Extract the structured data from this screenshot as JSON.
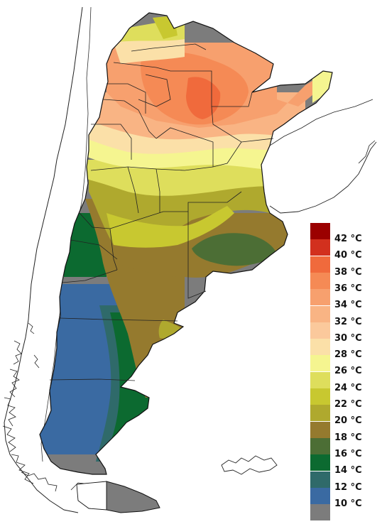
{
  "legend": {
    "items": [
      {
        "label": "42 °C",
        "color": "#9b0000"
      },
      {
        "label": "40 °C",
        "color": "#d2301e"
      },
      {
        "label": "38 °C",
        "color": "#f06a3c"
      },
      {
        "label": "36 °C",
        "color": "#f58a55"
      },
      {
        "label": "34 °C",
        "color": "#f7a06e"
      },
      {
        "label": "32 °C",
        "color": "#f9b484"
      },
      {
        "label": "30 °C",
        "color": "#fbc99c"
      },
      {
        "label": "28 °C",
        "color": "#fbe0a8"
      },
      {
        "label": "26 °C",
        "color": "#f5f590"
      },
      {
        "label": "24 °C",
        "color": "#dede5c"
      },
      {
        "label": "22 °C",
        "color": "#c8c830"
      },
      {
        "label": "20 °C",
        "color": "#afa92e"
      },
      {
        "label": "18 °C",
        "color": "#957a2e"
      },
      {
        "label": "16 °C",
        "color": "#4c6e35"
      },
      {
        "label": "14 °C",
        "color": "#0c6a30"
      },
      {
        "label": "12 °C",
        "color": "#2f6a6a"
      },
      {
        "label": "10 °C",
        "color": "#3a6aa2"
      },
      {
        "label": "",
        "color": "#7c7c7c"
      }
    ]
  }
}
